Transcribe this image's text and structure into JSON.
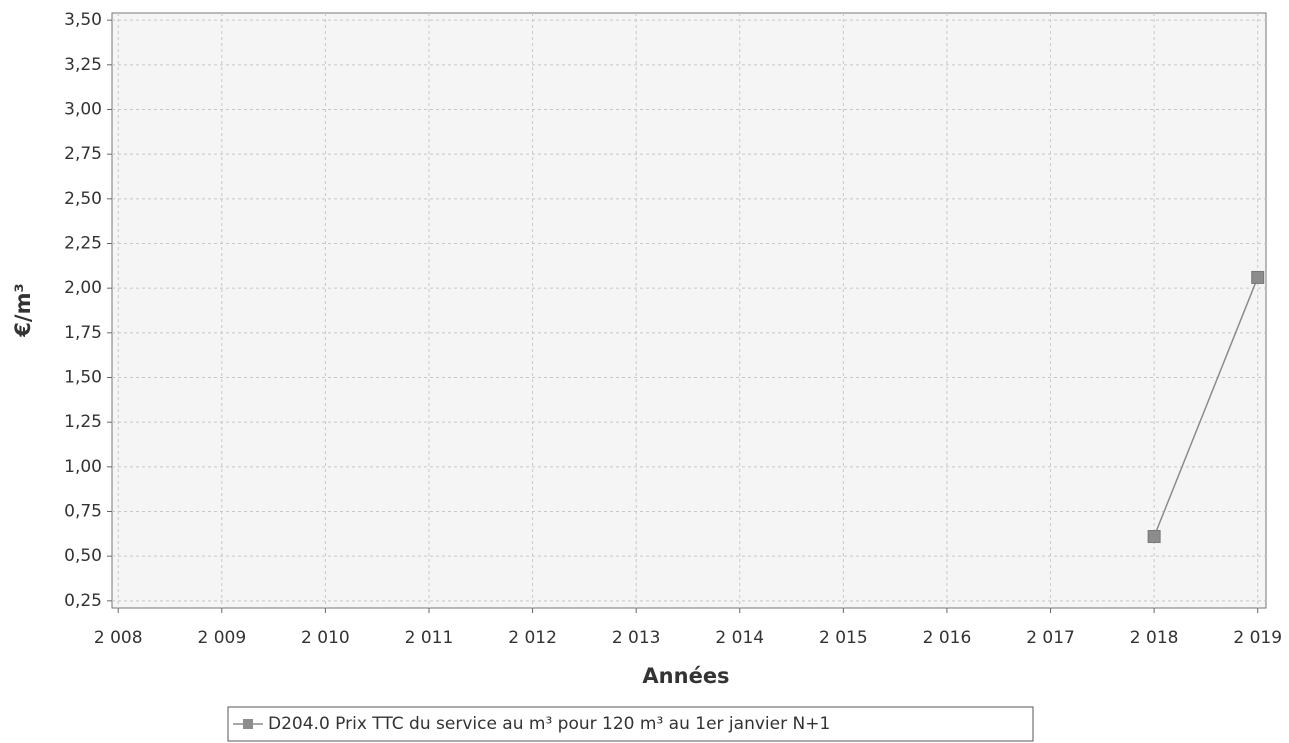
{
  "chart_data": {
    "type": "line",
    "x_label": "Années",
    "y_label": "€/m³",
    "x": [
      2018,
      2019
    ],
    "series": [
      {
        "name": "D204.0 Prix TTC du service au m³ pour 120 m³ au 1er janvier N+1",
        "color": "#8c8c8c",
        "values": [
          0.61,
          2.06
        ]
      }
    ],
    "xlim": [
      2007.94,
      2019.08
    ],
    "ylim": [
      0.21,
      3.54
    ],
    "xticks": [
      {
        "value": 2008,
        "label": "2 008"
      },
      {
        "value": 2009,
        "label": "2 009"
      },
      {
        "value": 2010,
        "label": "2 010"
      },
      {
        "value": 2011,
        "label": "2 011"
      },
      {
        "value": 2012,
        "label": "2 012"
      },
      {
        "value": 2013,
        "label": "2 013"
      },
      {
        "value": 2014,
        "label": "2 014"
      },
      {
        "value": 2015,
        "label": "2 015"
      },
      {
        "value": 2016,
        "label": "2 016"
      },
      {
        "value": 2017,
        "label": "2 017"
      },
      {
        "value": 2018,
        "label": "2 018"
      },
      {
        "value": 2019,
        "label": "2 019"
      }
    ],
    "yticks": [
      {
        "value": 0.25,
        "label": "0,25"
      },
      {
        "value": 0.5,
        "label": "0,50"
      },
      {
        "value": 0.75,
        "label": "0,75"
      },
      {
        "value": 1,
        "label": "1,00"
      },
      {
        "value": 1.25,
        "label": "1,25"
      },
      {
        "value": 1.5,
        "label": "1,50"
      },
      {
        "value": 1.75,
        "label": "1,75"
      },
      {
        "value": 2,
        "label": "2,00"
      },
      {
        "value": 2.25,
        "label": "2,25"
      },
      {
        "value": 2.5,
        "label": "2,50"
      },
      {
        "value": 2.75,
        "label": "2,75"
      },
      {
        "value": 3,
        "label": "3,00"
      },
      {
        "value": 3.25,
        "label": "3,25"
      },
      {
        "value": 3.5,
        "label": "3,50"
      }
    ],
    "grid": true
  }
}
